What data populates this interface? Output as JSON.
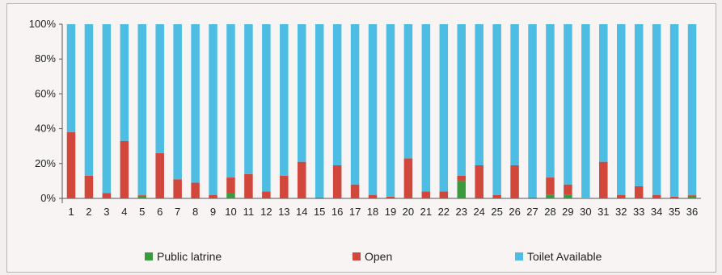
{
  "chart_data": {
    "type": "bar",
    "stacked": true,
    "percent_stacked": true,
    "categories": [
      "1",
      "2",
      "3",
      "4",
      "5",
      "6",
      "7",
      "8",
      "9",
      "10",
      "11",
      "12",
      "13",
      "14",
      "15",
      "16",
      "17",
      "18",
      "19",
      "20",
      "21",
      "22",
      "23",
      "24",
      "25",
      "26",
      "27",
      "28",
      "29",
      "30",
      "31",
      "32",
      "33",
      "34",
      "35",
      "36"
    ],
    "series": [
      {
        "name": "Public latrine",
        "color": "#3a9a3e",
        "values": [
          0,
          0,
          0,
          0,
          1.5,
          0,
          0,
          0,
          0,
          3,
          0,
          0,
          0,
          0,
          0,
          0,
          0,
          0,
          0,
          0,
          0,
          0,
          10,
          0,
          0,
          0,
          0,
          2,
          2,
          0,
          0,
          0,
          0,
          0,
          0,
          1.5
        ]
      },
      {
        "name": "Open",
        "color": "#d2473b",
        "values": [
          38,
          13,
          3,
          33,
          0.5,
          26,
          11,
          9,
          2,
          9,
          14,
          4,
          13,
          21,
          0.5,
          19,
          8,
          2,
          1,
          23,
          4,
          4,
          3,
          19,
          2,
          19,
          0.5,
          10,
          6,
          0,
          21,
          2,
          7,
          2,
          1,
          0.5
        ]
      },
      {
        "name": "Toilet Available",
        "color": "#4dbde4",
        "values": [
          62,
          87,
          97,
          67,
          98,
          74,
          89,
          91,
          98,
          88,
          86,
          96,
          87,
          79,
          99.5,
          81,
          92,
          98,
          99,
          77,
          96,
          96,
          87,
          81,
          98,
          81,
          99.5,
          88,
          92,
          100,
          79,
          98,
          93,
          98,
          99,
          98
        ]
      }
    ],
    "yticks": [
      "0%",
      "20%",
      "40%",
      "60%",
      "80%",
      "100%"
    ],
    "ylim": [
      0,
      100
    ],
    "grid": false,
    "legend_position": "bottom"
  }
}
